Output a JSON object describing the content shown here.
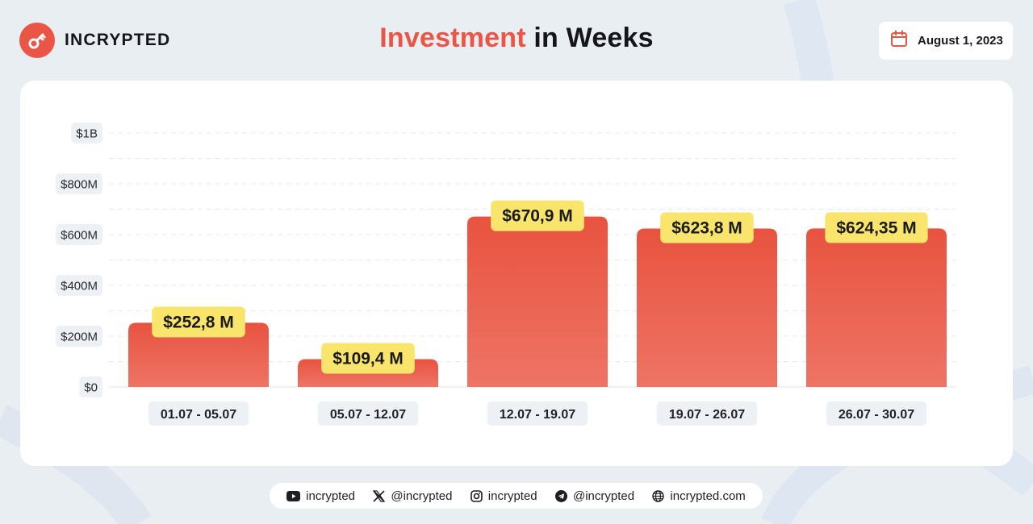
{
  "brand": {
    "name": "INCRYPTED",
    "logo_icon": "key-icon",
    "accent": "#ea5545"
  },
  "header": {
    "title_accent": "Investment",
    "title_rest": "in Weeks"
  },
  "date": {
    "icon": "calendar-icon",
    "text": "August 1, 2023"
  },
  "chart_data": {
    "type": "bar",
    "categories": [
      "01.07 - 05.07",
      "05.07 - 12.07",
      "12.07 - 19.07",
      "19.07 - 26.07",
      "26.07 - 30.07"
    ],
    "values": [
      252.8,
      109.4,
      670.9,
      623.8,
      624.35
    ],
    "value_labels": [
      "$252,8 M",
      "$109,4 M",
      "$670,9 M",
      "$623,8 M",
      "$624,35 M"
    ],
    "y_ticks": [
      0,
      200,
      400,
      600,
      800,
      1000
    ],
    "y_tick_labels": [
      "$0",
      "$200M",
      "$400M",
      "$600M",
      "$800M",
      "$1B"
    ],
    "ylim": [
      0,
      1000
    ],
    "unit": "M",
    "grid": true,
    "bar_color_top": "#e8533f",
    "bar_color_bottom": "#ee7465",
    "label_color": "#f9e46c"
  },
  "footer": {
    "items": [
      {
        "icon": "youtube-icon",
        "text": "incrypted"
      },
      {
        "icon": "x-icon",
        "text": "@incrypted"
      },
      {
        "icon": "instagram-icon",
        "text": "incrypted"
      },
      {
        "icon": "telegram-icon",
        "text": "@incrypted"
      },
      {
        "icon": "globe-icon",
        "text": "incrypted.com"
      }
    ]
  }
}
